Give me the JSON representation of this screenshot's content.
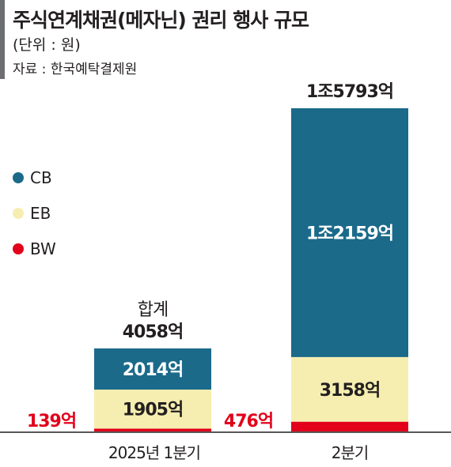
{
  "header": {
    "title": "주식연계채권(메자닌) 권리 행사 규모",
    "unit": "(단위 : 원)",
    "source": "자료 : 한국예탁결제원"
  },
  "legend": [
    {
      "label": "CB",
      "color": "#1b6a8a"
    },
    {
      "label": "EB",
      "color": "#f6eeb0"
    },
    {
      "label": "BW",
      "color": "#e2001a"
    }
  ],
  "chart_data": {
    "type": "bar",
    "stacked": true,
    "categories": [
      "2025년 1분기",
      "2분기"
    ],
    "series": [
      {
        "name": "BW",
        "values": [
          139,
          476
        ],
        "labels": [
          "139억",
          "476억"
        ],
        "color": "#e2001a"
      },
      {
        "name": "EB",
        "values": [
          1905,
          3158
        ],
        "labels": [
          "1905억",
          "3158억"
        ],
        "color": "#f6eeb0"
      },
      {
        "name": "CB",
        "values": [
          2014,
          12159
        ],
        "labels": [
          "2014억",
          "1조2159억"
        ],
        "color": "#1b6a8a"
      }
    ],
    "totals": [
      4058,
      15793
    ],
    "total_labels": [
      "합계\n4058억",
      "1조5793억"
    ],
    "unit": "억 원"
  }
}
